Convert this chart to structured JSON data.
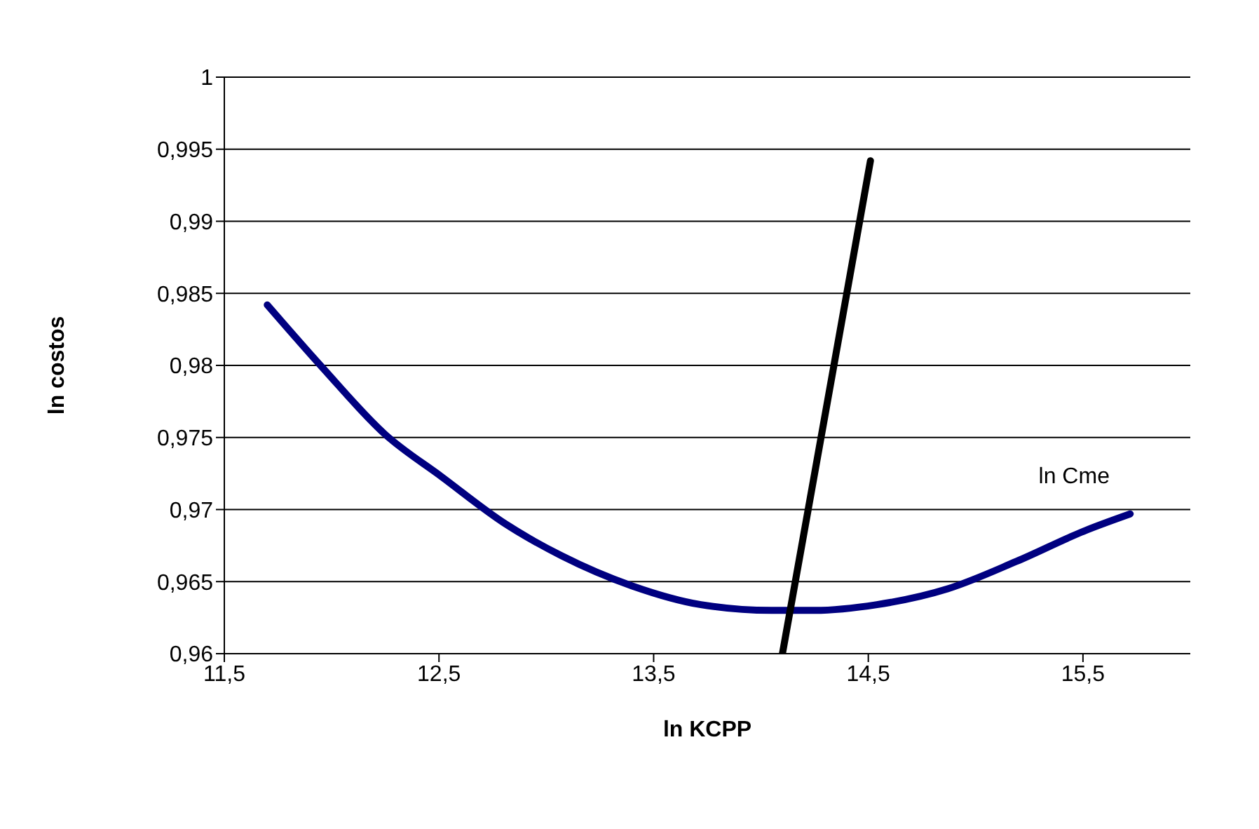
{
  "chart_data": {
    "type": "line",
    "xlabel": "ln KCPP",
    "ylabel": "ln costos",
    "xlim": [
      11.5,
      16
    ],
    "xticks": [
      {
        "value": 11.5,
        "label": "11,5"
      },
      {
        "value": 12.5,
        "label": "12,5"
      },
      {
        "value": 13.5,
        "label": "13,5"
      },
      {
        "value": 14.5,
        "label": "14,5"
      },
      {
        "value": 15.5,
        "label": "15,5"
      }
    ],
    "ylim": [
      0.96,
      1
    ],
    "yticks": [
      {
        "value": 0.96,
        "label": "0,96"
      },
      {
        "value": 0.965,
        "label": "0,965"
      },
      {
        "value": 0.97,
        "label": "0,97"
      },
      {
        "value": 0.975,
        "label": "0,975"
      },
      {
        "value": 0.98,
        "label": "0,98"
      },
      {
        "value": 0.985,
        "label": "0,985"
      },
      {
        "value": 0.99,
        "label": "0,99"
      },
      {
        "value": 0.995,
        "label": "0,995"
      },
      1
    ],
    "grid": "y",
    "marker": "none",
    "line_style": "solid",
    "series": [
      {
        "name": "ln Cme",
        "color": "#000080",
        "x": [
          11.7,
          11.96,
          12.25,
          12.51,
          12.81,
          13.07,
          13.4,
          13.72,
          14.05,
          14.25,
          14.54,
          14.87,
          15.19,
          15.52,
          15.72
        ],
        "values": [
          0.9842,
          0.9798,
          0.9752,
          0.9723,
          0.969,
          0.9668,
          0.9647,
          0.9634,
          0.963,
          0.963,
          0.9634,
          0.9645,
          0.9664,
          0.9686,
          0.9697
        ]
      },
      {
        "color": "#000000",
        "x": [
          14.1,
          14.51
        ],
        "values": [
          0.96,
          0.9942
        ]
      }
    ]
  }
}
